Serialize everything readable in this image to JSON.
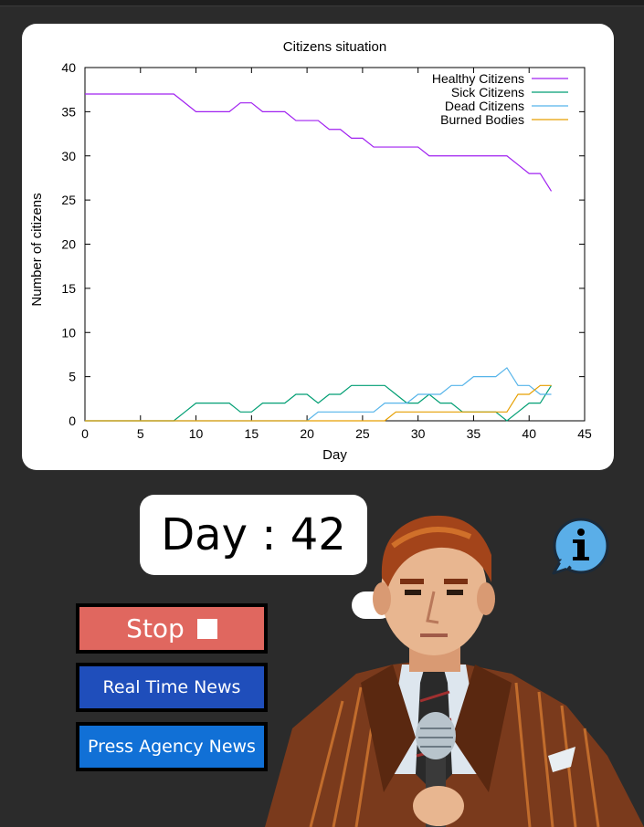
{
  "chart_data": {
    "type": "line",
    "title": "Citizens situation",
    "xlabel": "Day",
    "ylabel": "Number of citizens",
    "xlim": [
      0,
      45
    ],
    "ylim": [
      0,
      40
    ],
    "xticks": [
      "0",
      "5",
      "10",
      "15",
      "20",
      "25",
      "30",
      "35",
      "40",
      "45"
    ],
    "yticks": [
      "0",
      "5",
      "10",
      "15",
      "20",
      "25",
      "30",
      "35",
      "40"
    ],
    "grid": false,
    "legend_position": "top-right",
    "series": [
      {
        "name": "Healthy Citizens",
        "color": "#a020f0",
        "points": [
          [
            0,
            37
          ],
          [
            8,
            37
          ],
          [
            10,
            35
          ],
          [
            13,
            35
          ],
          [
            14,
            36
          ],
          [
            15,
            36
          ],
          [
            16,
            35
          ],
          [
            18,
            35
          ],
          [
            19,
            34
          ],
          [
            21,
            34
          ],
          [
            22,
            33
          ],
          [
            23,
            33
          ],
          [
            24,
            32
          ],
          [
            25,
            32
          ],
          [
            26,
            31
          ],
          [
            30,
            31
          ],
          [
            31,
            30
          ],
          [
            38,
            30
          ],
          [
            39,
            29
          ],
          [
            40,
            28
          ],
          [
            41,
            28
          ],
          [
            42,
            26
          ]
        ]
      },
      {
        "name": "Sick Citizens",
        "color": "#009e73",
        "points": [
          [
            0,
            0
          ],
          [
            8,
            0
          ],
          [
            9,
            1
          ],
          [
            10,
            2
          ],
          [
            13,
            2
          ],
          [
            14,
            1
          ],
          [
            15,
            1
          ],
          [
            16,
            2
          ],
          [
            18,
            2
          ],
          [
            19,
            3
          ],
          [
            20,
            3
          ],
          [
            21,
            2
          ],
          [
            22,
            3
          ],
          [
            23,
            3
          ],
          [
            24,
            4
          ],
          [
            27,
            4
          ],
          [
            28,
            3
          ],
          [
            29,
            2
          ],
          [
            30,
            2
          ],
          [
            31,
            3
          ],
          [
            32,
            2
          ],
          [
            33,
            2
          ],
          [
            34,
            1
          ],
          [
            37,
            1
          ],
          [
            38,
            0
          ],
          [
            39,
            1
          ],
          [
            40,
            2
          ],
          [
            41,
            2
          ],
          [
            42,
            4
          ]
        ]
      },
      {
        "name": "Dead Citizens",
        "color": "#56b4e9",
        "points": [
          [
            0,
            0
          ],
          [
            20,
            0
          ],
          [
            21,
            1
          ],
          [
            26,
            1
          ],
          [
            27,
            2
          ],
          [
            29,
            2
          ],
          [
            30,
            3
          ],
          [
            32,
            3
          ],
          [
            33,
            4
          ],
          [
            34,
            4
          ],
          [
            35,
            5
          ],
          [
            37,
            5
          ],
          [
            38,
            6
          ],
          [
            39,
            4
          ],
          [
            40,
            4
          ],
          [
            41,
            3
          ],
          [
            42,
            3
          ]
        ]
      },
      {
        "name": "Burned Bodies",
        "color": "#e69f00",
        "points": [
          [
            0,
            0
          ],
          [
            27,
            0
          ],
          [
            28,
            1
          ],
          [
            38,
            1
          ],
          [
            39,
            3
          ],
          [
            40,
            3
          ],
          [
            41,
            4
          ],
          [
            42,
            4
          ]
        ]
      }
    ]
  },
  "status": {
    "day_label": "Day : 42"
  },
  "buttons": {
    "stop": "Stop",
    "real_time_news": "Real Time News",
    "press_agency_news": "Press Agency News"
  },
  "icons": {
    "info": "info-icon",
    "stop": "stop-square-icon"
  },
  "colors": {
    "background": "#2b2b2b",
    "stop_button": "#e0675f",
    "real_time_button": "#1f4ebb",
    "press_button": "#1170d6",
    "info_bubble": "#5aaee8"
  }
}
